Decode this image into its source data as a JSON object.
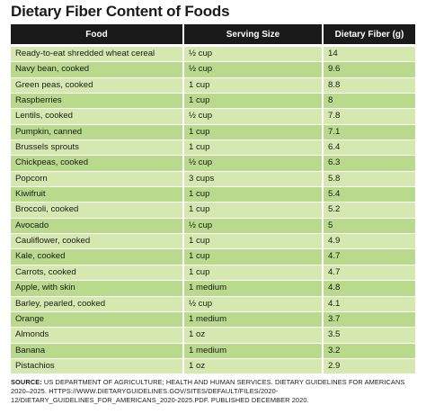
{
  "title": "Dietary Fiber Content of Foods",
  "headers": {
    "food": "Food",
    "serving": "Serving Size",
    "fiber": "Dietary Fiber (g)"
  },
  "rows": [
    {
      "food": "Ready-to-eat shredded wheat cereal",
      "serving": "½ cup",
      "fiber": "14"
    },
    {
      "food": "Navy bean, cooked",
      "serving": "½ cup",
      "fiber": "9.6"
    },
    {
      "food": "Green peas, cooked",
      "serving": "1 cup",
      "fiber": "8.8"
    },
    {
      "food": "Raspberries",
      "serving": "1 cup",
      "fiber": "8"
    },
    {
      "food": "Lentils, cooked",
      "serving": "½ cup",
      "fiber": "7.8"
    },
    {
      "food": "Pumpkin, canned",
      "serving": "1 cup",
      "fiber": "7.1"
    },
    {
      "food": "Brussels sprouts",
      "serving": "1 cup",
      "fiber": "6.4"
    },
    {
      "food": "Chickpeas, cooked",
      "serving": "½ cup",
      "fiber": "6.3"
    },
    {
      "food": "Popcorn",
      "serving": "3 cups",
      "fiber": "5.8"
    },
    {
      "food": "Kiwifruit",
      "serving": "1 cup",
      "fiber": "5.4"
    },
    {
      "food": "Broccoli, cooked",
      "serving": "1 cup",
      "fiber": "5.2"
    },
    {
      "food": "Avocado",
      "serving": "½ cup",
      "fiber": "5"
    },
    {
      "food": "Cauliflower, cooked",
      "serving": "1 cup",
      "fiber": "4.9"
    },
    {
      "food": "Kale, cooked",
      "serving": "1 cup",
      "fiber": "4.7"
    },
    {
      "food": "Carrots, cooked",
      "serving": "1 cup",
      "fiber": "4.7"
    },
    {
      "food": "Apple, with skin",
      "serving": "1 medium",
      "fiber": "4.8"
    },
    {
      "food": "Barley, pearled, cooked",
      "serving": "½ cup",
      "fiber": "4.1"
    },
    {
      "food": "Orange",
      "serving": "1 medium",
      "fiber": "3.7"
    },
    {
      "food": "Almonds",
      "serving": "1 oz",
      "fiber": "3.5"
    },
    {
      "food": "Banana",
      "serving": "1 medium",
      "fiber": "3.2"
    },
    {
      "food": "Pistachios",
      "serving": "1 oz",
      "fiber": "2.9"
    }
  ],
  "source": {
    "label": "SOURCE:",
    "text": " US DEPARTMENT OF AGRICULTURE; HEALTH AND HUMAN SERVICES. DIETARY GUIDELINES FOR AMERICANS 2020–2025. HTTPS://WWW.DIETARYGUIDELINES.GOV/SITES/DEFAULT/FILES/2020-12/DIETARY_GUIDELINES_FOR_AMERICANS_2020-2025.PDF. PUBLISHED DECEMBER 2020."
  },
  "colors": {
    "header": "#1a1a1a",
    "row_light": "#d5e8b0",
    "row_dark": "#b9d98c"
  }
}
